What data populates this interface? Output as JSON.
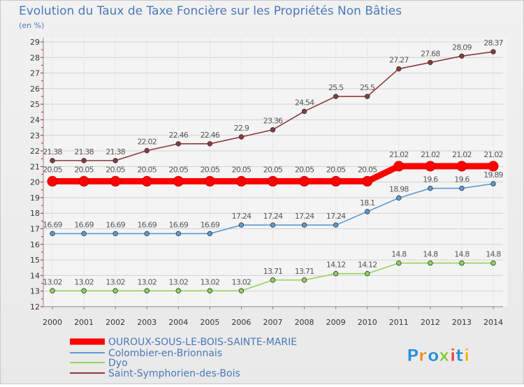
{
  "chart_data": {
    "type": "line",
    "title": "Evolution du Taux de Taxe Foncière sur les Propriétés Non Bâties",
    "unit_label": "(en %)",
    "x": [
      "2000",
      "2001",
      "2002",
      "2003",
      "2004",
      "2005",
      "2006",
      "2007",
      "2008",
      "2009",
      "2010",
      "2011",
      "2012",
      "2013",
      "2014"
    ],
    "ylim": [
      12,
      29
    ],
    "yticks": [
      "12",
      "13",
      "14",
      "15",
      "16",
      "17",
      "18",
      "19",
      "20",
      "21",
      "22",
      "23",
      "24",
      "25",
      "26",
      "27",
      "28",
      "29"
    ],
    "grid": true,
    "legend_position": "bottom-left",
    "series": [
      {
        "name": "OUROUX-SOUS-LE-BOIS-SAINTE-MARIE",
        "color": "#ff0000",
        "values": [
          20.05,
          20.05,
          20.05,
          20.05,
          20.05,
          20.05,
          20.05,
          20.05,
          20.05,
          20.05,
          20.05,
          21.02,
          21.02,
          21.02,
          21.02
        ],
        "labels": [
          "20.05",
          "20.05",
          "20.05",
          "20.05",
          "20.05",
          "20.05",
          "20.05",
          "20.05",
          "20.05",
          "20.05",
          "20.05",
          "21.02",
          "21.02",
          "21.02",
          "21.02"
        ]
      },
      {
        "name": "Colombier-en-Brionnais",
        "color": "#5b9bd5",
        "values": [
          16.69,
          16.69,
          16.69,
          16.69,
          16.69,
          16.69,
          17.24,
          17.24,
          17.24,
          17.24,
          18.1,
          18.98,
          19.6,
          19.6,
          19.89
        ],
        "labels": [
          "16.69",
          "16.69",
          "16.69",
          "16.69",
          "16.69",
          "16.69",
          "17.24",
          "17.24",
          "17.24",
          "17.24",
          "18.1",
          "18.98",
          "19.6",
          "19.6",
          "19.89"
        ]
      },
      {
        "name": "Dyo",
        "color": "#8fd45a",
        "values": [
          13.02,
          13.02,
          13.02,
          13.02,
          13.02,
          13.02,
          13.02,
          13.71,
          13.71,
          14.12,
          14.12,
          14.8,
          14.8,
          14.8,
          14.8
        ],
        "labels": [
          "13.02",
          "13.02",
          "13.02",
          "13.02",
          "13.02",
          "13.02",
          "13.02",
          "13.71",
          "13.71",
          "14.12",
          "14.12",
          "14.8",
          "14.8",
          "14.8",
          "14.8"
        ]
      },
      {
        "name": "Saint-Symphorien-des-Bois",
        "color": "#8b3a3a",
        "values": [
          21.38,
          21.38,
          21.38,
          22.02,
          22.46,
          22.46,
          22.9,
          23.36,
          24.54,
          25.5,
          25.5,
          27.27,
          27.68,
          28.09,
          28.37
        ],
        "labels": [
          "21.38",
          "21.38",
          "21.38",
          "22.02",
          "22.46",
          "22.46",
          "22.9",
          "23.36",
          "24.54",
          "25.5",
          "25.5",
          "27.27",
          "27.68",
          "28.09",
          "28.37"
        ]
      }
    ]
  },
  "logo": {
    "text": "Proxiti",
    "colors": [
      "#2e8fd8",
      "#f28c28",
      "#2e8fd8",
      "#8cc63f",
      "#e94b3c",
      "#2e8fd8",
      "#f2b01e"
    ]
  }
}
